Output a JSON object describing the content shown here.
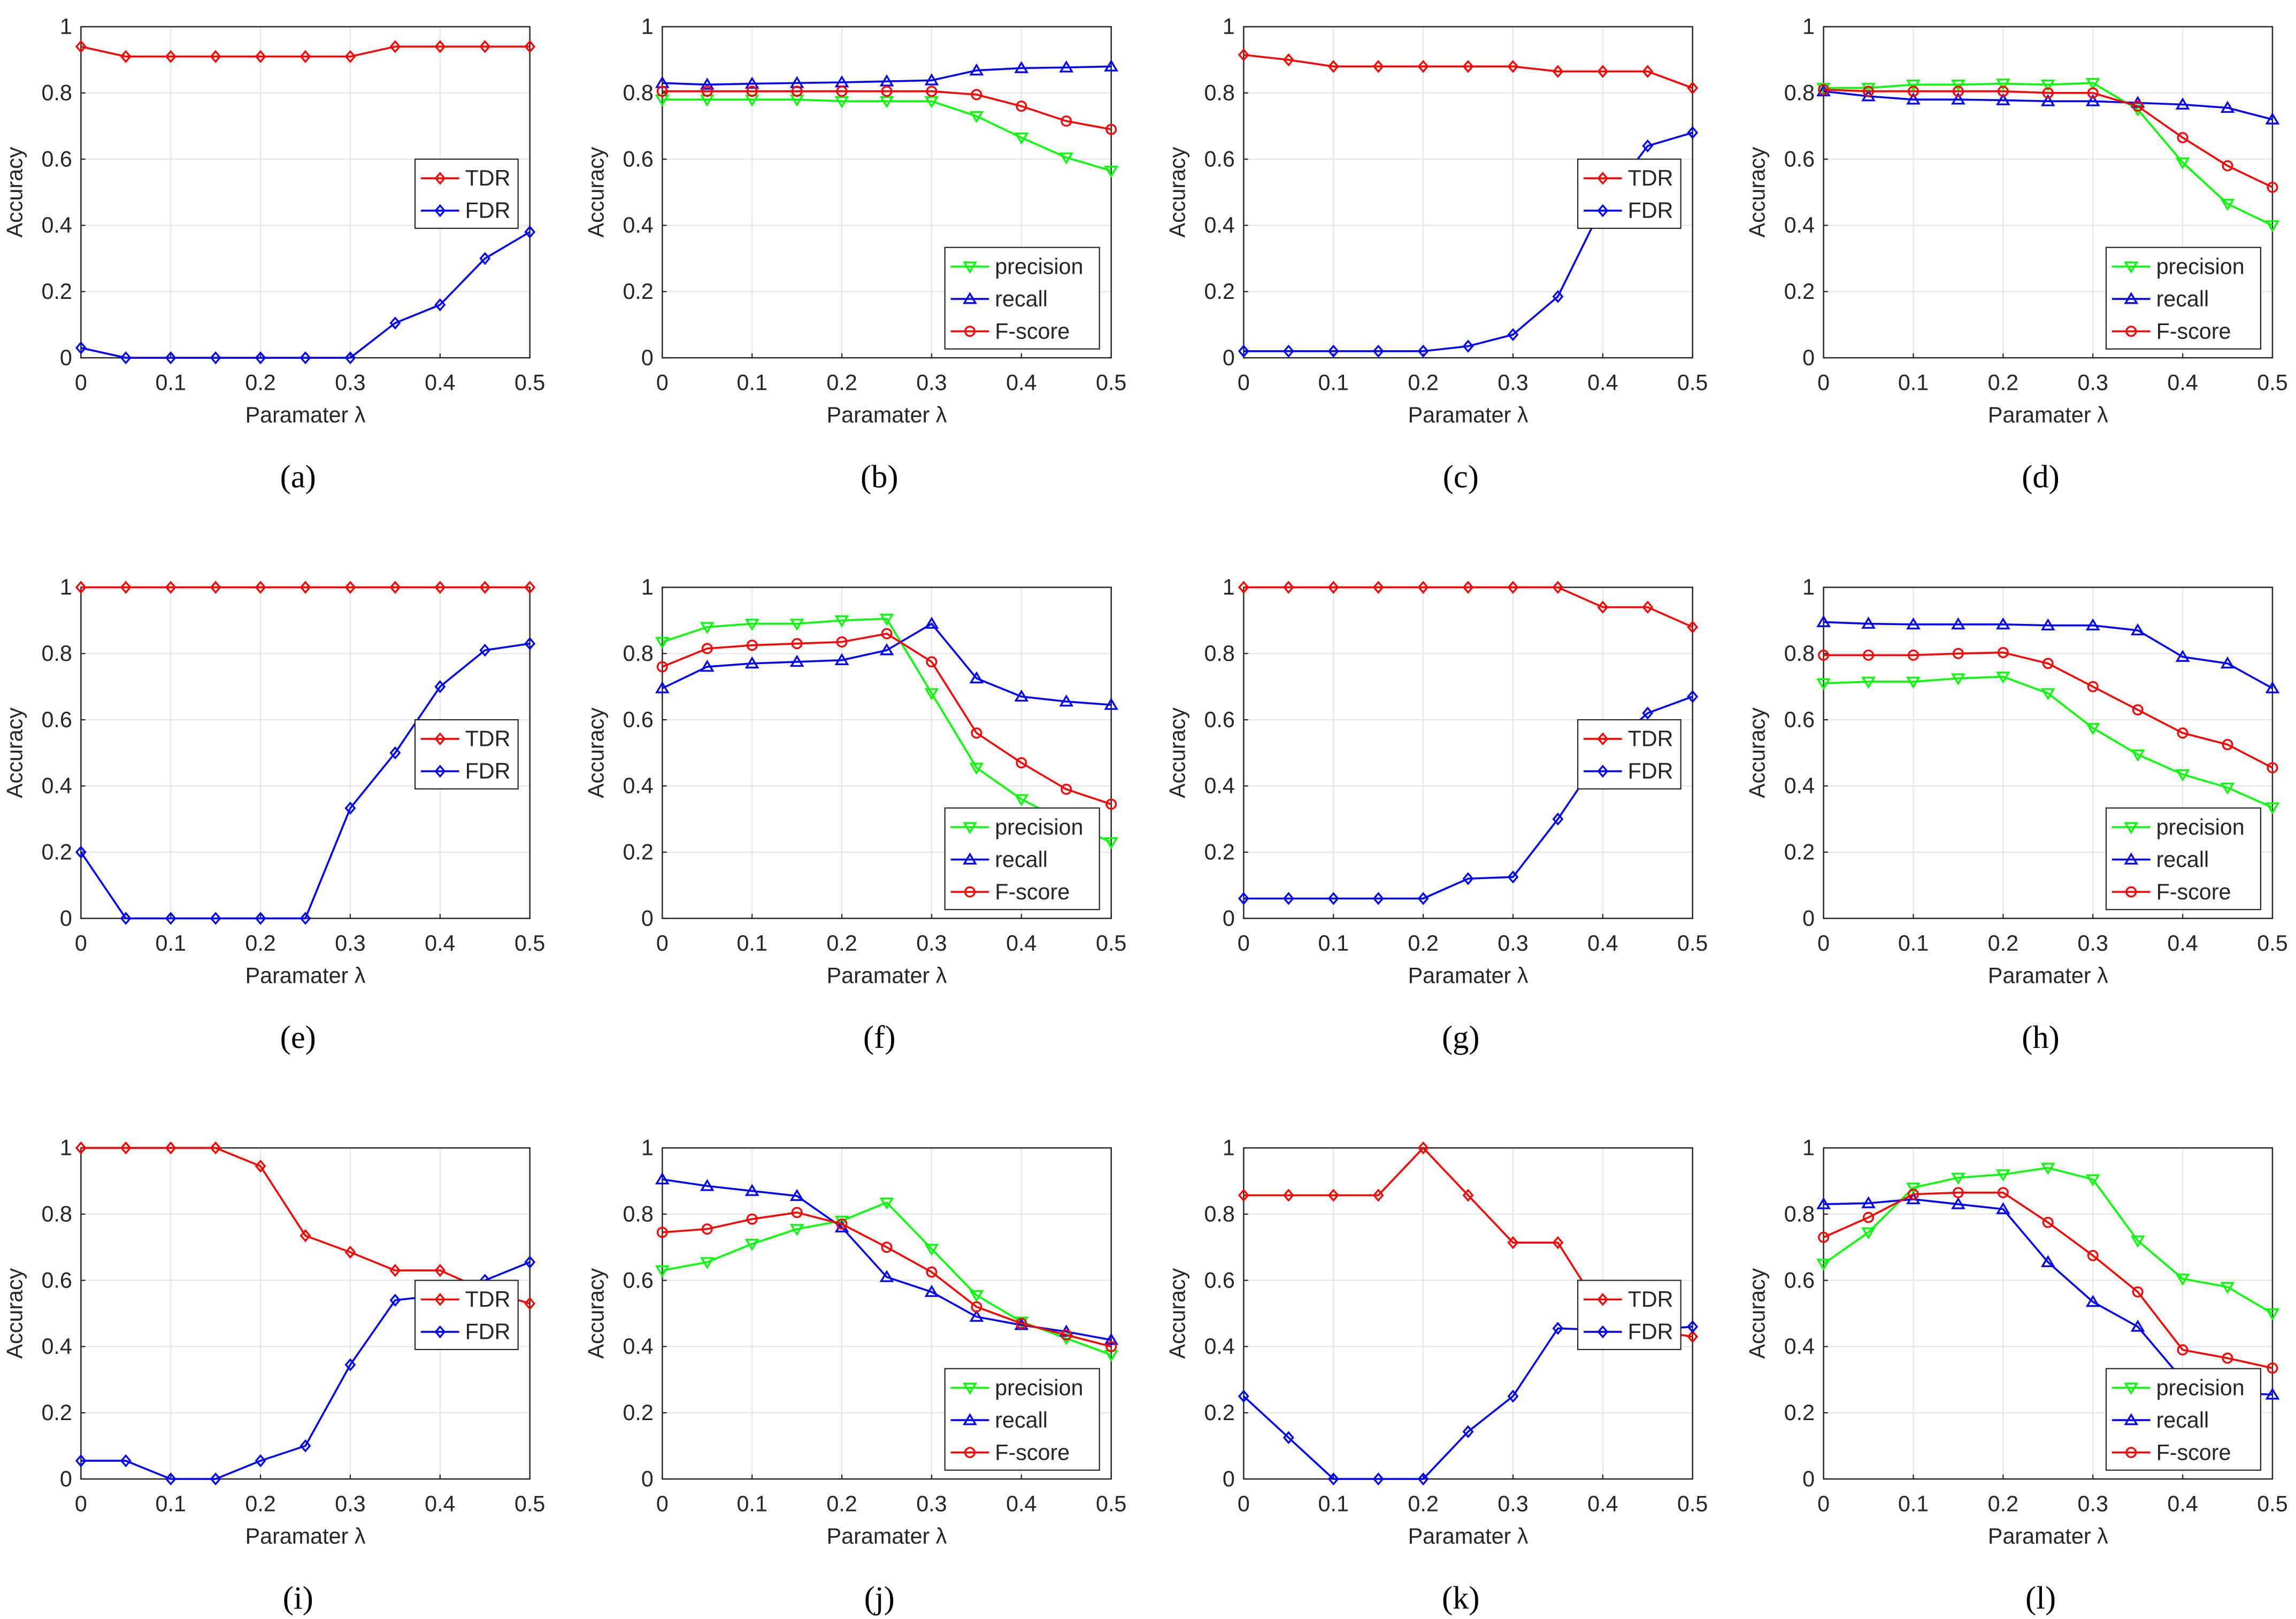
{
  "chart_data": {
    "type": "line",
    "x": [
      0,
      0.05,
      0.1,
      0.15,
      0.2,
      0.25,
      0.3,
      0.35,
      0.4,
      0.45,
      0.5
    ],
    "xlabel": "Paramater λ",
    "ylabel": "Accuracy",
    "xlim": [
      0,
      0.5
    ],
    "ylim": [
      0,
      1
    ],
    "x_ticks": [
      "0",
      "0.1",
      "0.2",
      "0.3",
      "0.4",
      "0.5"
    ],
    "y_ticks": [
      "0",
      "0.2",
      "0.4",
      "0.6",
      "0.8",
      "1"
    ],
    "grid": true,
    "colors": {
      "TDR": "#ff0000",
      "FDR": "#0000ff",
      "precision": "#00ff00",
      "recall": "#0000ff",
      "F-score": "#ff0000"
    },
    "panels": [
      {
        "label": "(a)",
        "legend": "middle-right",
        "series": [
          {
            "name": "TDR",
            "marker": "diamond",
            "values": [
              0.94,
              0.91,
              0.91,
              0.91,
              0.91,
              0.91,
              0.91,
              0.94,
              0.94,
              0.94,
              0.94
            ]
          },
          {
            "name": "FDR",
            "marker": "diamond",
            "values": [
              0.03,
              0,
              0,
              0,
              0,
              0,
              0,
              0.105,
              0.16,
              0.3,
              0.38
            ]
          }
        ]
      },
      {
        "label": "(b)",
        "legend": "bottom-right",
        "series": [
          {
            "name": "precision",
            "marker": "triangle-down",
            "values": [
              0.78,
              0.78,
              0.78,
              0.78,
              0.775,
              0.775,
              0.775,
              0.73,
              0.665,
              0.605,
              0.565
            ]
          },
          {
            "name": "recall",
            "marker": "triangle-up",
            "values": [
              0.83,
              0.825,
              0.828,
              0.83,
              0.832,
              0.835,
              0.838,
              0.868,
              0.875,
              0.877,
              0.88
            ]
          },
          {
            "name": "F-score",
            "marker": "circle",
            "values": [
              0.805,
              0.805,
              0.805,
              0.805,
              0.805,
              0.805,
              0.805,
              0.795,
              0.76,
              0.715,
              0.69
            ]
          }
        ]
      },
      {
        "label": "(c)",
        "legend": "middle-right",
        "series": [
          {
            "name": "TDR",
            "marker": "diamond",
            "values": [
              0.915,
              0.9,
              0.88,
              0.88,
              0.88,
              0.88,
              0.88,
              0.865,
              0.865,
              0.865,
              0.815
            ]
          },
          {
            "name": "FDR",
            "marker": "diamond",
            "values": [
              0.02,
              0.02,
              0.02,
              0.02,
              0.02,
              0.035,
              0.07,
              0.185,
              0.46,
              0.64,
              0.68
            ]
          }
        ]
      },
      {
        "label": "(d)",
        "legend": "bottom-right",
        "series": [
          {
            "name": "precision",
            "marker": "triangle-down",
            "values": [
              0.815,
              0.815,
              0.825,
              0.825,
              0.828,
              0.825,
              0.83,
              0.75,
              0.59,
              0.465,
              0.4
            ]
          },
          {
            "name": "recall",
            "marker": "triangle-up",
            "values": [
              0.805,
              0.79,
              0.78,
              0.78,
              0.778,
              0.775,
              0.775,
              0.77,
              0.765,
              0.755,
              0.72
            ]
          },
          {
            "name": "F-score",
            "marker": "circle",
            "values": [
              0.81,
              0.805,
              0.805,
              0.805,
              0.805,
              0.8,
              0.8,
              0.76,
              0.665,
              0.58,
              0.515
            ]
          }
        ]
      },
      {
        "label": "(e)",
        "legend": "middle-right",
        "series": [
          {
            "name": "TDR",
            "marker": "diamond",
            "values": [
              1,
              1,
              1,
              1,
              1,
              1,
              1,
              1,
              1,
              1,
              1
            ]
          },
          {
            "name": "FDR",
            "marker": "diamond",
            "values": [
              0.2,
              0,
              0,
              0,
              0,
              0,
              0.333,
              0.5,
              0.7,
              0.81,
              0.83
            ]
          }
        ]
      },
      {
        "label": "(f)",
        "legend": "bottom-right",
        "series": [
          {
            "name": "precision",
            "marker": "triangle-down",
            "values": [
              0.835,
              0.88,
              0.89,
              0.89,
              0.9,
              0.905,
              0.68,
              0.455,
              0.36,
              0.29,
              0.23
            ]
          },
          {
            "name": "recall",
            "marker": "triangle-up",
            "values": [
              0.695,
              0.76,
              0.77,
              0.775,
              0.78,
              0.81,
              0.89,
              0.725,
              0.67,
              0.655,
              0.645
            ]
          },
          {
            "name": "F-score",
            "marker": "circle",
            "values": [
              0.76,
              0.815,
              0.825,
              0.83,
              0.835,
              0.86,
              0.775,
              0.56,
              0.47,
              0.39,
              0.345
            ]
          }
        ]
      },
      {
        "label": "(g)",
        "legend": "middle-right",
        "series": [
          {
            "name": "TDR",
            "marker": "diamond",
            "values": [
              1,
              1,
              1,
              1,
              1,
              1,
              1,
              1,
              0.94,
              0.94,
              0.88
            ]
          },
          {
            "name": "FDR",
            "marker": "diamond",
            "values": [
              0.06,
              0.06,
              0.06,
              0.06,
              0.06,
              0.12,
              0.125,
              0.3,
              0.5,
              0.62,
              0.67
            ]
          }
        ]
      },
      {
        "label": "(h)",
        "legend": "bottom-right",
        "series": [
          {
            "name": "precision",
            "marker": "triangle-down",
            "values": [
              0.71,
              0.715,
              0.715,
              0.725,
              0.73,
              0.68,
              0.575,
              0.495,
              0.435,
              0.395,
              0.335
            ]
          },
          {
            "name": "recall",
            "marker": "triangle-up",
            "values": [
              0.895,
              0.89,
              0.888,
              0.888,
              0.888,
              0.885,
              0.885,
              0.87,
              0.79,
              0.77,
              0.695
            ]
          },
          {
            "name": "F-score",
            "marker": "circle",
            "values": [
              0.795,
              0.795,
              0.795,
              0.8,
              0.803,
              0.77,
              0.7,
              0.63,
              0.56,
              0.525,
              0.455
            ]
          }
        ]
      },
      {
        "label": "(i)",
        "legend": "middle-right",
        "series": [
          {
            "name": "TDR",
            "marker": "diamond",
            "values": [
              1,
              1,
              1,
              1,
              0.945,
              0.735,
              0.685,
              0.63,
              0.63,
              0.57,
              0.53
            ]
          },
          {
            "name": "FDR",
            "marker": "diamond",
            "values": [
              0.055,
              0.055,
              0,
              0,
              0.055,
              0.1,
              0.345,
              0.54,
              0.555,
              0.6,
              0.655
            ]
          }
        ]
      },
      {
        "label": "(j)",
        "legend": "bottom-right",
        "series": [
          {
            "name": "precision",
            "marker": "triangle-down",
            "values": [
              0.63,
              0.655,
              0.71,
              0.755,
              0.78,
              0.835,
              0.695,
              0.555,
              0.475,
              0.425,
              0.375
            ]
          },
          {
            "name": "recall",
            "marker": "triangle-up",
            "values": [
              0.905,
              0.885,
              0.87,
              0.855,
              0.76,
              0.61,
              0.565,
              0.49,
              0.465,
              0.445,
              0.42
            ]
          },
          {
            "name": "F-score",
            "marker": "circle",
            "values": [
              0.745,
              0.755,
              0.785,
              0.805,
              0.77,
              0.7,
              0.625,
              0.52,
              0.47,
              0.435,
              0.4
            ]
          }
        ]
      },
      {
        "label": "(k)",
        "legend": "middle-right",
        "series": [
          {
            "name": "TDR",
            "marker": "diamond",
            "values": [
              0.857,
              0.857,
              0.857,
              0.857,
              1,
              0.857,
              0.714,
              0.714,
              0.5,
              0.45,
              0.43
            ]
          },
          {
            "name": "FDR",
            "marker": "diamond",
            "values": [
              0.25,
              0.125,
              0,
              0,
              0,
              0.143,
              0.25,
              0.455,
              0.45,
              0.45,
              0.46
            ]
          }
        ]
      },
      {
        "label": "(l)",
        "legend": "bottom-right",
        "series": [
          {
            "name": "precision",
            "marker": "triangle-down",
            "values": [
              0.65,
              0.745,
              0.88,
              0.91,
              0.92,
              0.94,
              0.905,
              0.72,
              0.605,
              0.58,
              0.5
            ]
          },
          {
            "name": "recall",
            "marker": "triangle-up",
            "values": [
              0.83,
              0.833,
              0.845,
              0.83,
              0.815,
              0.655,
              0.535,
              0.46,
              0.3,
              0.26,
              0.255
            ]
          },
          {
            "name": "F-score",
            "marker": "circle",
            "values": [
              0.73,
              0.79,
              0.86,
              0.865,
              0.865,
              0.775,
              0.675,
              0.565,
              0.39,
              0.365,
              0.335
            ]
          }
        ]
      }
    ]
  }
}
